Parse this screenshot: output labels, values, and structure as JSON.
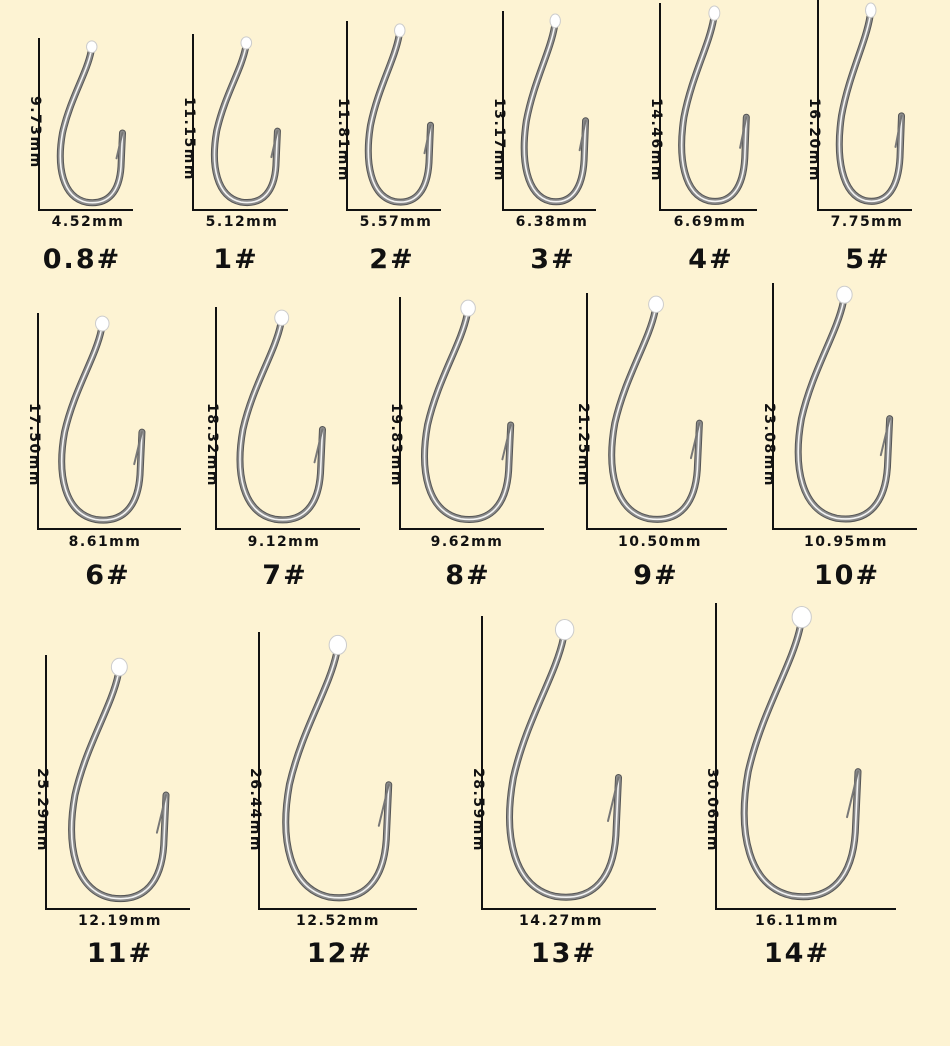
{
  "hooks": [
    {
      "size": "0.8#",
      "length": "9.73mm",
      "width": "4.52mm"
    },
    {
      "size": "1#",
      "length": "11.15mm",
      "width": "5.12mm"
    },
    {
      "size": "2#",
      "length": "11.81mm",
      "width": "5.57mm"
    },
    {
      "size": "3#",
      "length": "13.17mm",
      "width": "6.38mm"
    },
    {
      "size": "4#",
      "length": "14.46mm",
      "width": "6.69mm"
    },
    {
      "size": "5#",
      "length": "16.20mm",
      "width": "7.75mm"
    },
    {
      "size": "6#",
      "length": "17.50mm",
      "width": "8.61mm"
    },
    {
      "size": "7#",
      "length": "18.32mm",
      "width": "9.12mm"
    },
    {
      "size": "8#",
      "length": "19.83mm",
      "width": "9.62mm"
    },
    {
      "size": "9#",
      "length": "21.25mm",
      "width": "10.50mm"
    },
    {
      "size": "10#",
      "length": "23.08mm",
      "width": "10.95mm"
    },
    {
      "size": "11#",
      "length": "25.29mm",
      "width": "12.19mm"
    },
    {
      "size": "12#",
      "length": "26.44mm",
      "width": "12.52mm"
    },
    {
      "size": "13#",
      "length": "28.59mm",
      "width": "14.27mm"
    },
    {
      "size": "14#",
      "length": "30.06mm",
      "width": "16.11mm"
    }
  ],
  "colors": {
    "background": "#fdf3d3",
    "axis": "#111111",
    "text": "#111111",
    "hook_wire": "#8a8a8a",
    "hook_highlight": "#f4f4f4",
    "eye": "#ffffff"
  },
  "icon": "fishing-hook-icon"
}
